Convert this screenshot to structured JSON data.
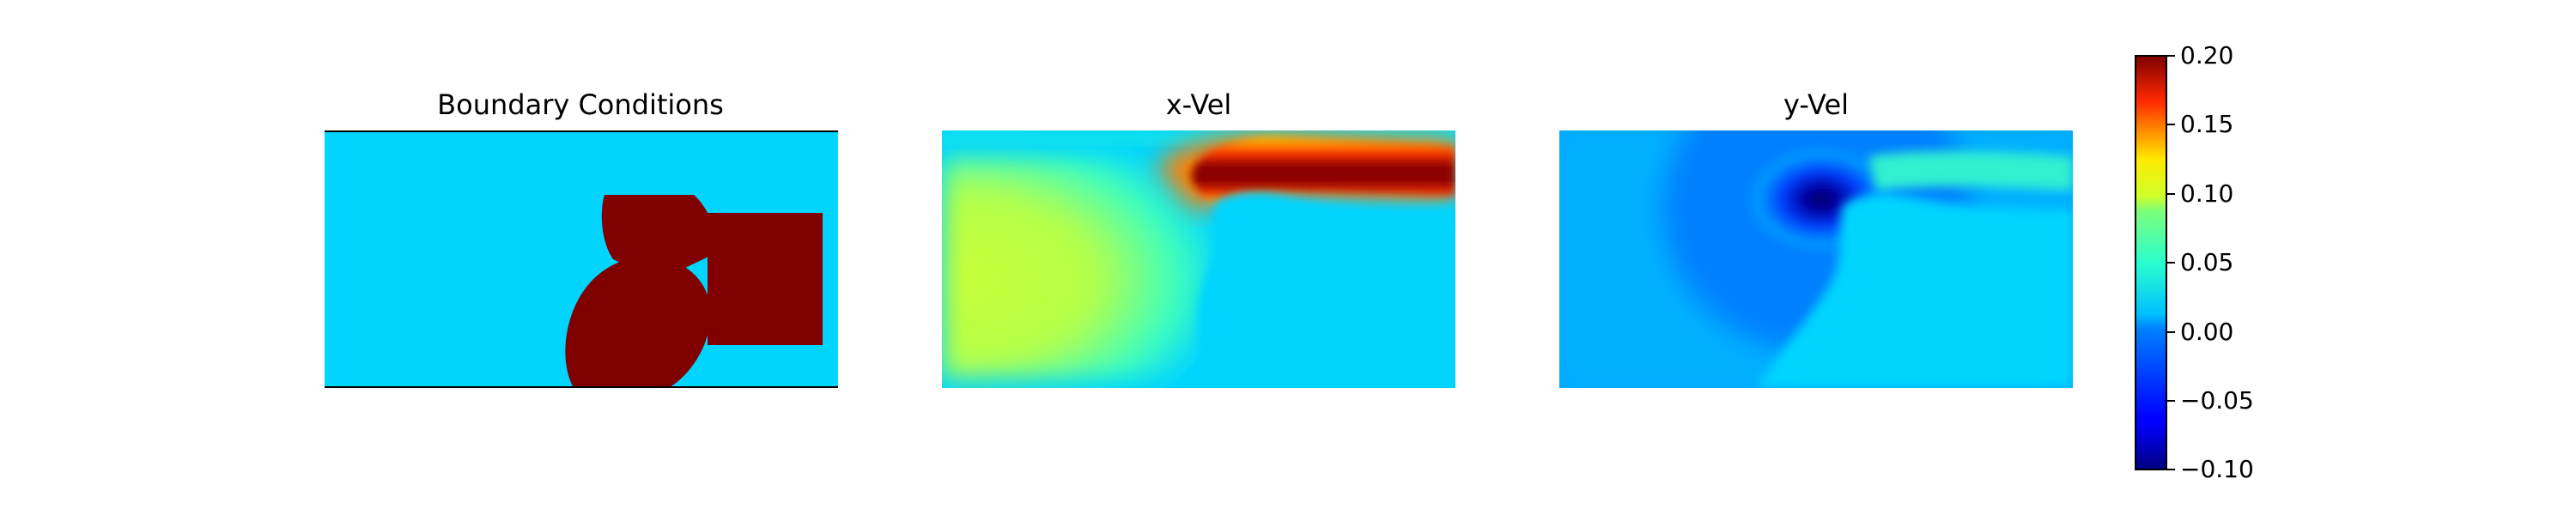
{
  "chart_data": [
    {
      "type": "heatmap",
      "title": "Boundary Conditions",
      "description_values": [
        0,
        1
      ],
      "colors": {
        "background": "#00d4ff",
        "obstacle": "#800000"
      }
    },
    {
      "type": "heatmap",
      "title": "x-Vel",
      "range": [
        -0.1,
        0.2
      ]
    },
    {
      "type": "heatmap",
      "title": "y-Vel",
      "range": [
        -0.1,
        0.2
      ]
    }
  ],
  "colorbar": {
    "min": -0.1,
    "max": 0.2,
    "colormap": "jet",
    "ticks": [
      "0.20",
      "0.15",
      "0.10",
      "0.05",
      "0.00",
      "−0.05",
      "−0.10"
    ]
  }
}
